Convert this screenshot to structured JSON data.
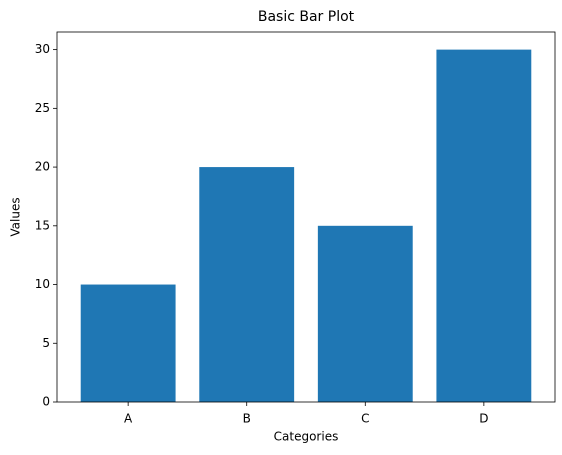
{
  "chart_data": {
    "type": "bar",
    "title": "Basic Bar Plot",
    "x_label": "Categories",
    "y_label": "Values",
    "categories": [
      "A",
      "B",
      "C",
      "D"
    ],
    "values": [
      10,
      20,
      15,
      30
    ],
    "color": "#1f77b4",
    "ylim": [
      0,
      31.5
    ],
    "yticks": [
      0,
      5,
      10,
      15,
      20,
      25,
      30
    ],
    "grid": false
  }
}
